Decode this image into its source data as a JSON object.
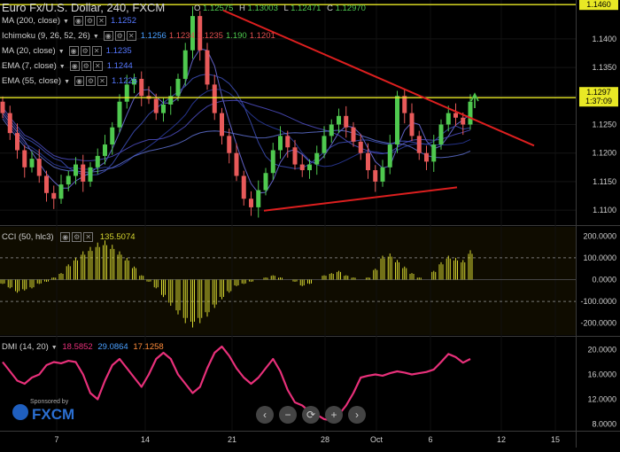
{
  "header": {
    "title": "Euro Fx/U.S. Dollar, 240, FXCM",
    "ohlc": {
      "o_label": "O",
      "o": "1.12575",
      "h_label": "H",
      "h": "1.13003",
      "l_label": "L",
      "l": "1.12471",
      "c_label": "C",
      "c": "1.12970"
    }
  },
  "indicators": [
    {
      "label": "MA (200, close)",
      "values": [
        {
          "v": "1.1252",
          "c": "#5577ff"
        }
      ]
    },
    {
      "label": "Ichimoku (9, 26, 52, 26)",
      "values": [
        {
          "v": "1.1256",
          "c": "#4aa0ff"
        },
        {
          "v": "1.1234",
          "c": "#e05050"
        },
        {
          "v": "1.1235",
          "c": "#e05050"
        },
        {
          "v": "1.190",
          "c": "#4fc94f"
        },
        {
          "v": "1.1201",
          "c": "#e05050"
        }
      ]
    },
    {
      "label": "MA (20, close)",
      "values": [
        {
          "v": "1.1235",
          "c": "#5577ff"
        }
      ]
    },
    {
      "label": "EMA (7, close)",
      "values": [
        {
          "v": "1.1244",
          "c": "#5577ff"
        }
      ]
    },
    {
      "label": "EMA (55, close)",
      "values": [
        {
          "v": "1.1225",
          "c": "#5577ff"
        }
      ]
    }
  ],
  "price_axis": {
    "ticks": [
      "1.1400",
      "1.1350",
      "1.1300",
      "1.1250",
      "1.1200",
      "1.1150",
      "1.1100"
    ],
    "high_badge": "1.1460",
    "last_price": "1.1297",
    "countdown": "1:37:09"
  },
  "cci": {
    "label": "CCI (50, hlc3)",
    "value": "135.5074",
    "ticks": [
      "200.0000",
      "100.0000",
      "0.0000",
      "-100.0000",
      "-200.0000"
    ]
  },
  "dmi": {
    "label": "DMI (14, 20)",
    "values": [
      {
        "v": "18.5852",
        "c": "#e8307a"
      },
      {
        "v": "29.0864",
        "c": "#4aa0ff"
      },
      {
        "v": "17.1258",
        "c": "#ff8c3a"
      }
    ],
    "ticks": [
      "20.0000",
      "16.0000",
      "12.0000",
      "8.0000"
    ]
  },
  "x_axis": {
    "ticks": [
      "7",
      "14",
      "21",
      "28",
      "Oct",
      "6",
      "12",
      "15"
    ]
  },
  "sponsor": {
    "line1": "Sponsored by",
    "line2": "FXCM"
  },
  "nav": {
    "back": "‹",
    "zoom_out": "−",
    "reset": "⟳",
    "zoom_in": "+",
    "forward": "›"
  },
  "colors": {
    "up": "#4fc94f",
    "down": "#e85a5a",
    "trend": "#dd1f1f",
    "level": "#e8e825",
    "cci": "#d6d630",
    "dmi": "#e8307a"
  },
  "chart_data": {
    "type": "candlestick",
    "title": "Euro Fx/U.S. Dollar, 240, FXCM",
    "ylim": [
      1.108,
      1.1465
    ],
    "close_approx": [
      1.127,
      1.1235,
      1.1205,
      1.1175,
      1.119,
      1.116,
      1.113,
      1.112,
      1.1145,
      1.116,
      1.118,
      1.115,
      1.1175,
      1.1195,
      1.1215,
      1.1245,
      1.129,
      1.132,
      1.133,
      1.13,
      1.1295,
      1.127,
      1.1285,
      1.13,
      1.133,
      1.138,
      1.144,
      1.138,
      1.132,
      1.127,
      1.123,
      1.12,
      1.116,
      1.112,
      1.1105,
      1.1135,
      1.1165,
      1.1205,
      1.123,
      1.121,
      1.118,
      1.117,
      1.118,
      1.12,
      1.123,
      1.125,
      1.1265,
      1.1245,
      1.122,
      1.12,
      1.117,
      1.115,
      1.1175,
      1.1215,
      1.13,
      1.127,
      1.123,
      1.12,
      1.1185,
      1.1215,
      1.125,
      1.127,
      1.1262,
      1.125,
      1.129
    ],
    "levels": [
      1.146,
      1.1297
    ],
    "cci_approx": [
      -20,
      -40,
      -60,
      -50,
      -40,
      -20,
      -10,
      10,
      30,
      70,
      100,
      130,
      150,
      170,
      180,
      160,
      130,
      100,
      60,
      20,
      -10,
      -40,
      -80,
      -120,
      -160,
      -200,
      -220,
      -200,
      -170,
      -130,
      -90,
      -60,
      -30,
      -20,
      -10,
      0,
      10,
      20,
      10,
      0,
      -10,
      -30,
      -20,
      0,
      20,
      30,
      40,
      20,
      10,
      0,
      10,
      50,
      110,
      120,
      90,
      60,
      30,
      10,
      0,
      40,
      80,
      110,
      100,
      90,
      135
    ],
    "dmi_approx": [
      18.0,
      16.5,
      15.0,
      14.5,
      15.5,
      16.0,
      17.5,
      18.0,
      17.8,
      18.2,
      18.0,
      16.0,
      13.0,
      12.0,
      15.0,
      17.5,
      18.5,
      17.0,
      15.5,
      14.0,
      16.0,
      18.5,
      19.5,
      18.5,
      16.0,
      14.5,
      13.0,
      14.0,
      17.0,
      19.5,
      20.5,
      19.0,
      17.0,
      15.5,
      14.5,
      15.5,
      17.0,
      18.5,
      16.5,
      13.5,
      11.5,
      11.0,
      10.0,
      9.5,
      8.8,
      8.6,
      9.5,
      11.0,
      13.0,
      15.5,
      15.8,
      16.0,
      15.8,
      16.2,
      16.5,
      16.3,
      16.0,
      16.2,
      16.4,
      16.8,
      18.0,
      19.3,
      18.8,
      17.9,
      18.5
    ]
  }
}
